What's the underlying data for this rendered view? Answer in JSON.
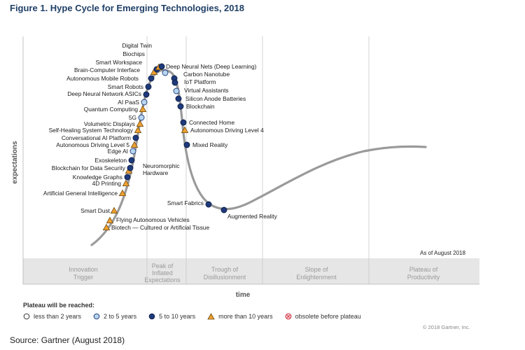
{
  "figure_title": "Figure 1. Hype Cycle for Emerging Technologies, 2018",
  "source": "Source: Gartner (August 2018)",
  "as_of": "As of August 2018",
  "copyright": "© 2018 Gartner, Inc.",
  "colors": {
    "curve": "#9a9a9a",
    "dark_dot": "#1f3a7a",
    "light_dot": "#b7d5ef",
    "triangle": "#f0a030",
    "phase_band": "#e8e8e8"
  },
  "legend": {
    "title": "Plateau will be reached:",
    "items": [
      {
        "label": "less than 2 years",
        "icon": "open-circle"
      },
      {
        "label": "2 to 5 years",
        "icon": "light-blue-circle"
      },
      {
        "label": "5 to 10 years",
        "icon": "dark-blue-circle"
      },
      {
        "label": "more than 10 years",
        "icon": "orange-triangle"
      },
      {
        "label": "obsolete before plateau",
        "icon": "crossed-circle"
      }
    ]
  },
  "chart_data": {
    "type": "hype-cycle",
    "xlabel": "time",
    "ylabel": "expectations",
    "phases": [
      "Innovation Trigger",
      "Peak of Inflated Expectations",
      "Trough of Disillusionment",
      "Slope of Enlightenment",
      "Plateau of Productivity"
    ],
    "technologies": [
      {
        "name": "Biotech — Cultured or Artificial Tissue",
        "phase": "Innovation Trigger",
        "plateau": "more than 10 years"
      },
      {
        "name": "Flying Autonomous Vehicles",
        "phase": "Innovation Trigger",
        "plateau": "more than 10 years"
      },
      {
        "name": "Smart Dust",
        "phase": "Innovation Trigger",
        "plateau": "more than 10 years"
      },
      {
        "name": "Artificial General Intelligence",
        "phase": "Innovation Trigger",
        "plateau": "more than 10 years"
      },
      {
        "name": "4D Printing",
        "phase": "Innovation Trigger",
        "plateau": "more than 10 years"
      },
      {
        "name": "Knowledge Graphs",
        "phase": "Innovation Trigger",
        "plateau": "5 to 10 years"
      },
      {
        "name": "Neuromorphic Hardware",
        "phase": "Innovation Trigger",
        "plateau": "more than 10 years"
      },
      {
        "name": "Blockchain for Data Security",
        "phase": "Innovation Trigger",
        "plateau": "5 to 10 years"
      },
      {
        "name": "Exoskeleton",
        "phase": "Innovation Trigger",
        "plateau": "5 to 10 years"
      },
      {
        "name": "Edge AI",
        "phase": "Innovation Trigger",
        "plateau": "2 to 5 years"
      },
      {
        "name": "Autonomous Driving Level 5",
        "phase": "Innovation Trigger",
        "plateau": "more than 10 years"
      },
      {
        "name": "Conversational AI Platform",
        "phase": "Innovation Trigger",
        "plateau": "5 to 10 years"
      },
      {
        "name": "Self-Healing System Technology",
        "phase": "Innovation Trigger",
        "plateau": "more than 10 years"
      },
      {
        "name": "Volumetric Displays",
        "phase": "Innovation Trigger",
        "plateau": "more than 10 years"
      },
      {
        "name": "5G",
        "phase": "Innovation Trigger",
        "plateau": "2 to 5 years"
      },
      {
        "name": "Quantum Computing",
        "phase": "Innovation Trigger",
        "plateau": "more than 10 years"
      },
      {
        "name": "AI PaaS",
        "phase": "Innovation Trigger",
        "plateau": "2 to 5 years"
      },
      {
        "name": "Deep Neural Network ASICs",
        "phase": "Innovation Trigger",
        "plateau": "5 to 10 years"
      },
      {
        "name": "Smart Robots",
        "phase": "Innovation Trigger",
        "plateau": "5 to 10 years"
      },
      {
        "name": "Autonomous Mobile Robots",
        "phase": "Peak of Inflated Expectations",
        "plateau": "5 to 10 years"
      },
      {
        "name": "Brain-Computer Interface",
        "phase": "Peak of Inflated Expectations",
        "plateau": "more than 10 years"
      },
      {
        "name": "Smart Workspace",
        "phase": "Peak of Inflated Expectations",
        "plateau": "5 to 10 years"
      },
      {
        "name": "Biochips",
        "phase": "Peak of Inflated Expectations",
        "plateau": "more than 10 years"
      },
      {
        "name": "Digital Twin",
        "phase": "Peak of Inflated Expectations",
        "plateau": "5 to 10 years"
      },
      {
        "name": "Deep Neural Nets (Deep Learning)",
        "phase": "Peak of Inflated Expectations",
        "plateau": "2 to 5 years"
      },
      {
        "name": "Carbon Nanotube",
        "phase": "Peak of Inflated Expectations",
        "plateau": "5 to 10 years"
      },
      {
        "name": "IoT Platform",
        "phase": "Peak of Inflated Expectations",
        "plateau": "5 to 10 years"
      },
      {
        "name": "Virtual Assistants",
        "phase": "Peak of Inflated Expectations",
        "plateau": "2 to 5 years"
      },
      {
        "name": "Silicon Anode Batteries",
        "phase": "Peak of Inflated Expectations",
        "plateau": "5 to 10 years"
      },
      {
        "name": "Blockchain",
        "phase": "Peak of Inflated Expectations",
        "plateau": "5 to 10 years"
      },
      {
        "name": "Connected Home",
        "phase": "Peak of Inflated Expectations",
        "plateau": "5 to 10 years"
      },
      {
        "name": "Autonomous Driving Level 4",
        "phase": "Peak of Inflated Expectations",
        "plateau": "more than 10 years"
      },
      {
        "name": "Mixed Reality",
        "phase": "Trough of Disillusionment",
        "plateau": "5 to 10 years"
      },
      {
        "name": "Smart Fabrics",
        "phase": "Trough of Disillusionment",
        "plateau": "5 to 10 years"
      },
      {
        "name": "Augmented Reality",
        "phase": "Trough of Disillusionment",
        "plateau": "5 to 10 years"
      }
    ]
  }
}
